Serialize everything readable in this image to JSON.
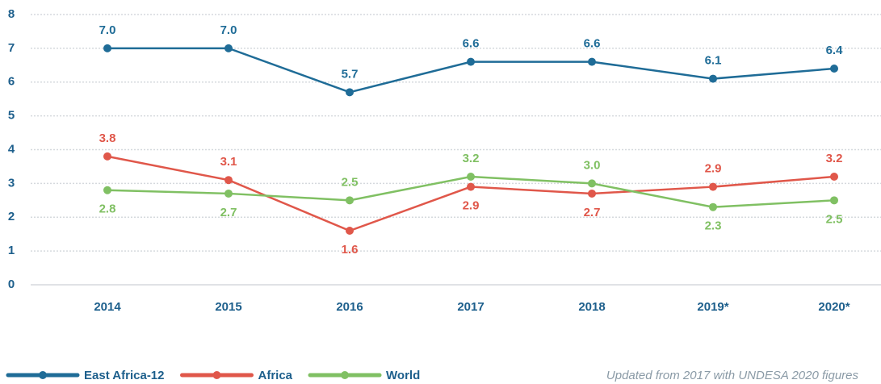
{
  "chart_data": {
    "type": "line",
    "categories": [
      "2014",
      "2015",
      "2016",
      "2017",
      "2018",
      "2019*",
      "2020*"
    ],
    "series": [
      {
        "name": "East Africa-12",
        "color": "#1f6c97",
        "values": [
          7.0,
          7.0,
          5.7,
          6.6,
          6.6,
          6.1,
          6.4
        ],
        "value_labels": [
          "7.0",
          "7.0",
          "5.7",
          "6.6",
          "6.6",
          "6.1",
          "6.4"
        ]
      },
      {
        "name": "Africa",
        "color": "#e0574a",
        "values": [
          3.8,
          3.1,
          1.6,
          2.9,
          2.7,
          2.9,
          3.2
        ],
        "value_labels": [
          "3.8",
          "3.1",
          "1.6",
          "2.9",
          "2.7",
          "2.9",
          "3.2"
        ]
      },
      {
        "name": "World",
        "color": "#80c063",
        "values": [
          2.8,
          2.7,
          2.5,
          3.2,
          3.0,
          2.3,
          2.5
        ],
        "value_labels": [
          "2.8",
          "2.7",
          "2.5",
          "3.2",
          "3.0",
          "2.3",
          "2.5"
        ]
      }
    ],
    "ylim": [
      0,
      8
    ],
    "yticks": [
      0,
      1,
      2,
      3,
      4,
      5,
      6,
      7,
      8
    ],
    "grid": true,
    "legend": "bottom-left",
    "note": "Updated from 2017 with UNDESA 2020 figures"
  }
}
